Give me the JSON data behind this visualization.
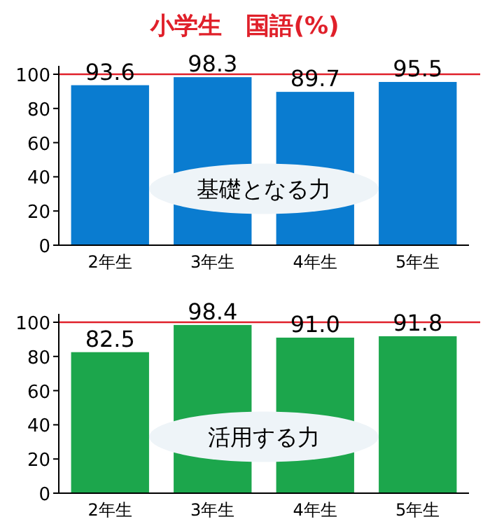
{
  "chart_data": [
    {
      "type": "bar",
      "title": "小学生　国語(%)",
      "categories": [
        "2年生",
        "3年生",
        "4年生",
        "5年生"
      ],
      "values": [
        93.6,
        98.3,
        89.7,
        95.5
      ],
      "value_labels": [
        "93.6",
        "98.3",
        "89.7",
        "95.5"
      ],
      "color": "#0a7cd0",
      "ylim": [
        0,
        100
      ],
      "yticks": [
        0,
        20,
        40,
        60,
        80,
        100
      ],
      "ref_lines": [
        {
          "axis": "y",
          "value": 100,
          "color": "#e0202a"
        }
      ],
      "annotations": [
        "基礎となる力"
      ]
    },
    {
      "type": "bar",
      "categories": [
        "2年生",
        "3年生",
        "4年生",
        "5年生"
      ],
      "values": [
        82.5,
        98.4,
        91.0,
        91.8
      ],
      "value_labels": [
        "82.5",
        "98.4",
        "91.0",
        "91.8"
      ],
      "color": "#1ca64c",
      "ylim": [
        0,
        100
      ],
      "yticks": [
        0,
        20,
        40,
        60,
        80,
        100
      ],
      "ref_lines": [
        {
          "axis": "y",
          "value": 100,
          "color": "#e0202a"
        }
      ],
      "annotations": [
        "活用する力"
      ]
    }
  ]
}
